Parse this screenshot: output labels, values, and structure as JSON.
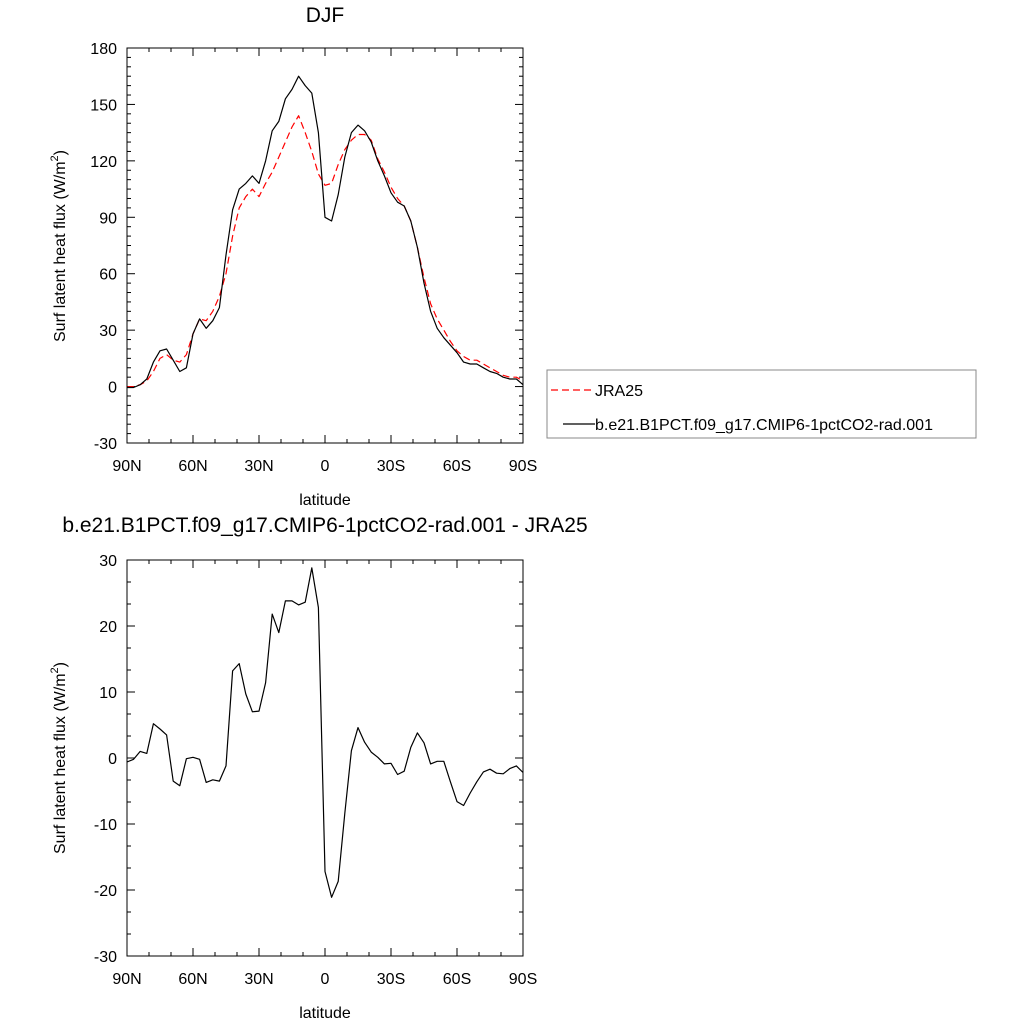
{
  "chart_data": [
    {
      "type": "line",
      "title": "DJF",
      "xlabel": "latitude",
      "ylabel": "Surf latent heat flux (W/m",
      "ylabel_sup": "2",
      "ylabel_tail": ")",
      "xlim": [
        90,
        -90
      ],
      "ylim": [
        -30,
        180
      ],
      "x_ticks": [
        90,
        60,
        30,
        0,
        -30,
        -60,
        -90
      ],
      "x_tick_labels": [
        "90N",
        "60N",
        "30N",
        "0",
        "30S",
        "60S",
        "90S"
      ],
      "y_ticks": [
        -30,
        0,
        30,
        60,
        90,
        120,
        150,
        180
      ],
      "y_tick_labels": [
        "-30",
        "0",
        "30",
        "60",
        "90",
        "120",
        "150",
        "180"
      ],
      "legend_position": "right",
      "series": [
        {
          "name": "JRA25",
          "color": "#ff0000",
          "dash": "dashed",
          "x": [
            90,
            87,
            84,
            81,
            78,
            75,
            72,
            69,
            66,
            63,
            60,
            57,
            54,
            51,
            48,
            45,
            42,
            39,
            36,
            33,
            30,
            27,
            24,
            21,
            18,
            15,
            12,
            9,
            6,
            3,
            0,
            -3,
            -6,
            -9,
            -12,
            -15,
            -18,
            -21,
            -24,
            -27,
            -30,
            -33,
            -36,
            -39,
            -42,
            -45,
            -48,
            -51,
            -54,
            -57,
            -60,
            -63,
            -66,
            -69,
            -72,
            -75,
            -78,
            -81,
            -84,
            -87,
            -90
          ],
          "y": [
            0,
            0,
            1,
            3,
            8,
            15,
            17,
            14,
            13,
            17,
            28,
            36,
            35,
            40,
            48,
            60,
            80,
            95,
            101,
            105,
            101,
            108,
            114,
            122,
            130,
            138,
            144,
            135,
            125,
            113,
            107,
            108,
            118,
            126,
            131,
            134,
            134,
            131,
            121,
            114,
            106,
            100,
            96,
            88,
            74,
            58,
            44,
            36,
            30,
            24,
            19,
            16,
            14,
            14,
            12,
            10,
            8,
            6,
            5,
            5,
            3
          ]
        },
        {
          "name": "b.e21.B1PCT.f09_g17.CMIP6-1pctCO2-rad.001",
          "color": "#000000",
          "dash": "solid",
          "x": [
            90,
            87,
            84,
            81,
            78,
            75,
            72,
            69,
            66,
            63,
            60,
            57,
            54,
            51,
            48,
            45,
            42,
            39,
            36,
            33,
            30,
            27,
            24,
            21,
            18,
            15,
            12,
            9,
            6,
            3,
            0,
            -3,
            -6,
            -9,
            -12,
            -15,
            -18,
            -21,
            -24,
            -27,
            -30,
            -33,
            -36,
            -39,
            -42,
            -45,
            -48,
            -51,
            -54,
            -57,
            -60,
            -63,
            -66,
            -69,
            -72,
            -75,
            -78,
            -81,
            -84,
            -87,
            -90
          ],
          "y": [
            -0.5,
            -0.5,
            1,
            4,
            13,
            19,
            20,
            14,
            8,
            10,
            28,
            36,
            31,
            35,
            42,
            70,
            94,
            105,
            108,
            112,
            108,
            120,
            136,
            141,
            153,
            158,
            165,
            160,
            156,
            135,
            90,
            88,
            102,
            122,
            135,
            139,
            136,
            130,
            120,
            112,
            103,
            98,
            96,
            88,
            74,
            55,
            40,
            31,
            26,
            22,
            18,
            13,
            12,
            12,
            10,
            8,
            7,
            5,
            4,
            4,
            1
          ]
        }
      ]
    },
    {
      "type": "line",
      "title": "b.e21.B1PCT.f09_g17.CMIP6-1pctCO2-rad.001 - JRA25",
      "xlabel": "latitude",
      "ylabel": "Surf latent heat flux (W/m",
      "ylabel_sup": "2",
      "ylabel_tail": ")",
      "xlim": [
        90,
        -90
      ],
      "ylim": [
        -30,
        30
      ],
      "x_ticks": [
        90,
        60,
        30,
        0,
        -30,
        -60,
        -90
      ],
      "x_tick_labels": [
        "90N",
        "60N",
        "30N",
        "0",
        "30S",
        "60S",
        "90S"
      ],
      "y_ticks": [
        -30,
        -20,
        -10,
        0,
        10,
        20,
        30
      ],
      "y_tick_labels": [
        "-30",
        "-20",
        "-10",
        "0",
        "10",
        "20",
        "30"
      ],
      "series": [
        {
          "color": "#000000",
          "dash": "solid",
          "x": [
            90,
            87,
            84,
            81,
            78,
            75,
            72,
            69,
            66,
            63,
            60,
            57,
            54,
            51,
            48,
            45,
            42,
            39,
            36,
            33,
            30,
            27,
            24,
            21,
            18,
            15,
            12,
            9,
            6,
            3,
            0,
            -3,
            -6,
            -9,
            -12,
            -15,
            -18,
            -21,
            -24,
            -27,
            -30,
            -33,
            -36,
            -39,
            -42,
            -45,
            -48,
            -51,
            -54,
            -57,
            -60,
            -63,
            -66,
            -69,
            -72,
            -75,
            -78,
            -81,
            -84,
            -87,
            -90
          ],
          "y": [
            -0.6,
            -0.2,
            1.0,
            0.7,
            5.2,
            4.4,
            3.5,
            -3.5,
            -4.2,
            -0.1,
            0.1,
            -0.2,
            -3.7,
            -3.3,
            -3.5,
            -1.2,
            13.2,
            14.3,
            9.7,
            7.0,
            7.1,
            11.4,
            21.8,
            19.0,
            23.8,
            23.8,
            23.2,
            23.6,
            28.8,
            22.8,
            -17.2,
            -21.1,
            -18.7,
            -8.4,
            1.1,
            4.6,
            2.4,
            0.9,
            0.1,
            -0.9,
            -0.8,
            -2.5,
            -2.0,
            1.6,
            3.8,
            2.3,
            -0.9,
            -0.5,
            -0.5,
            -3.6,
            -6.6,
            -7.2,
            -5.3,
            -3.6,
            -2.1,
            -1.7,
            -2.3,
            -2.4,
            -1.6,
            -1.2,
            -2.2
          ]
        }
      ]
    }
  ]
}
